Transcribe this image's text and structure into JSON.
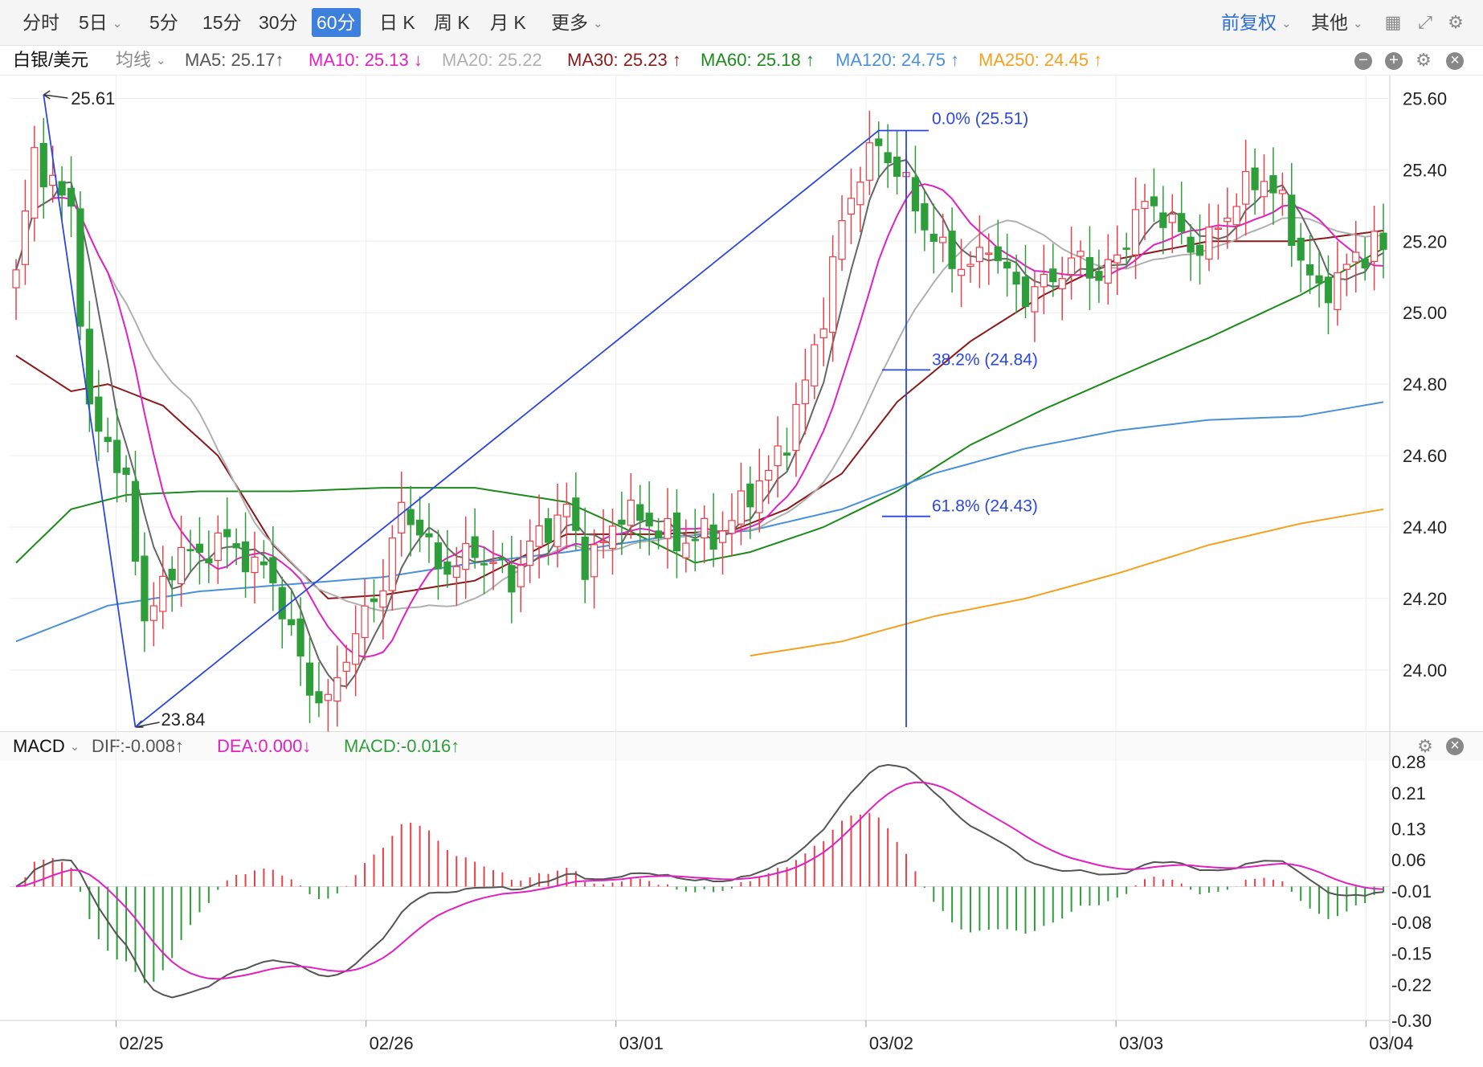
{
  "toolbar": {
    "timeframes": [
      "分时",
      "5日",
      "5分",
      "15分",
      "30分",
      "60分",
      "日 K",
      "周 K",
      "月 K",
      "更多"
    ],
    "active": "60分",
    "adjust_label": "前复权",
    "other_label": "其他"
  },
  "legend": {
    "symbol": "白银/美元",
    "ma_type": "均线",
    "ma": [
      {
        "label": "MA5: 25.17",
        "arrow": "↑",
        "color": "#555555"
      },
      {
        "label": "MA10: 25.13",
        "arrow": "↓",
        "color": "#e020c0"
      },
      {
        "label": "MA20: 25.22",
        "arrow": "",
        "color": "#b0b0b0"
      },
      {
        "label": "MA30: 25.23",
        "arrow": "↑",
        "color": "#8b1a1a"
      },
      {
        "label": "MA60: 25.18",
        "arrow": "↑",
        "color": "#1e8a1e"
      },
      {
        "label": "MA120: 24.75",
        "arrow": "↑",
        "color": "#4a90d9"
      },
      {
        "label": "MA250: 24.45",
        "arrow": "↑",
        "color": "#f5a020"
      }
    ]
  },
  "macd_legend": {
    "name": "MACD",
    "dif": "DIF:-0.008↑",
    "dea": "DEA:0.000↓",
    "macd": "MACD:-0.016↑"
  },
  "price_axis": [
    "25.60",
    "25.40",
    "25.20",
    "25.00",
    "24.80",
    "24.60",
    "24.40",
    "24.20",
    "24.00"
  ],
  "macd_axis": [
    "0.28",
    "0.21",
    "0.13",
    "0.06",
    "-0.01",
    "-0.08",
    "-0.15",
    "-0.22",
    "-0.30"
  ],
  "date_axis": [
    "02/25",
    "02/26",
    "03/01",
    "03/02",
    "03/03",
    "03/04"
  ],
  "annotations": {
    "high": "25.61",
    "low": "23.84",
    "fib0": "0.0% (25.51)",
    "fib382": "38.2% (24.84)",
    "fib618": "61.8% (24.43)"
  },
  "colors": {
    "up": "#e8414a",
    "down": "#2e9e3a",
    "fib": "#2b47e0",
    "dif": "#555555",
    "dea": "#e020c0"
  },
  "chart_data": {
    "type": "candlestick",
    "y_range": [
      23.84,
      25.61
    ],
    "macd_range": [
      -0.3,
      0.28
    ],
    "x_dates": [
      "02/25",
      "02/26",
      "03/01",
      "03/02",
      "03/03",
      "03/04"
    ],
    "close_keypoints": [
      [
        0,
        25.1
      ],
      [
        2,
        25.45
      ],
      [
        4,
        25.35
      ],
      [
        6,
        25.3
      ],
      [
        8,
        24.7
      ],
      [
        10,
        24.65
      ],
      [
        12,
        24.5
      ],
      [
        14,
        24.15
      ],
      [
        16,
        24.22
      ],
      [
        18,
        24.35
      ],
      [
        20,
        24.3
      ],
      [
        22,
        24.38
      ],
      [
        24,
        24.33
      ],
      [
        26,
        24.3
      ],
      [
        28,
        24.25
      ],
      [
        30,
        24.1
      ],
      [
        32,
        23.95
      ],
      [
        34,
        23.9
      ],
      [
        36,
        24.05
      ],
      [
        38,
        24.15
      ],
      [
        40,
        24.25
      ],
      [
        42,
        24.45
      ],
      [
        44,
        24.4
      ],
      [
        46,
        24.28
      ],
      [
        48,
        24.3
      ],
      [
        50,
        24.33
      ],
      [
        52,
        24.3
      ],
      [
        54,
        24.25
      ],
      [
        56,
        24.35
      ],
      [
        58,
        24.4
      ],
      [
        60,
        24.45
      ],
      [
        62,
        24.3
      ],
      [
        64,
        24.35
      ],
      [
        66,
        24.45
      ],
      [
        68,
        24.42
      ],
      [
        70,
        24.4
      ],
      [
        72,
        24.35
      ],
      [
        74,
        24.38
      ],
      [
        76,
        24.37
      ],
      [
        78,
        24.42
      ],
      [
        80,
        24.5
      ],
      [
        82,
        24.55
      ],
      [
        84,
        24.65
      ],
      [
        86,
        24.8
      ],
      [
        88,
        25.0
      ],
      [
        90,
        25.25
      ],
      [
        92,
        25.4
      ],
      [
        94,
        25.47
      ],
      [
        96,
        25.4
      ],
      [
        98,
        25.3
      ],
      [
        100,
        25.2
      ],
      [
        102,
        25.15
      ],
      [
        104,
        25.12
      ],
      [
        106,
        25.2
      ],
      [
        108,
        25.1
      ],
      [
        110,
        25.05
      ],
      [
        112,
        25.08
      ],
      [
        114,
        25.12
      ],
      [
        116,
        25.15
      ],
      [
        118,
        25.1
      ],
      [
        120,
        25.15
      ],
      [
        122,
        25.28
      ],
      [
        124,
        25.3
      ],
      [
        126,
        25.25
      ],
      [
        128,
        25.18
      ],
      [
        130,
        25.2
      ],
      [
        132,
        25.28
      ],
      [
        134,
        25.35
      ],
      [
        136,
        25.38
      ],
      [
        138,
        25.3
      ],
      [
        140,
        25.15
      ],
      [
        142,
        25.05
      ],
      [
        144,
        25.1
      ],
      [
        146,
        25.15
      ],
      [
        148,
        25.2
      ],
      [
        149,
        25.17
      ]
    ],
    "ma_series": [
      {
        "name": "MA30",
        "color": "#8b1a1a",
        "points": [
          [
            0,
            24.88
          ],
          [
            6,
            24.78
          ],
          [
            10,
            24.8
          ],
          [
            16,
            24.74
          ],
          [
            22,
            24.6
          ],
          [
            28,
            24.35
          ],
          [
            34,
            24.2
          ],
          [
            40,
            24.21
          ],
          [
            50,
            24.25
          ],
          [
            60,
            24.38
          ],
          [
            70,
            24.38
          ],
          [
            78,
            24.39
          ],
          [
            84,
            24.45
          ],
          [
            90,
            24.55
          ],
          [
            96,
            24.75
          ],
          [
            104,
            24.92
          ],
          [
            112,
            25.05
          ],
          [
            120,
            25.15
          ],
          [
            130,
            25.2
          ],
          [
            140,
            25.2
          ],
          [
            149,
            25.23
          ]
        ]
      },
      {
        "name": "MA60",
        "color": "#1e8a1e",
        "points": [
          [
            0,
            24.3
          ],
          [
            6,
            24.45
          ],
          [
            12,
            24.49
          ],
          [
            20,
            24.5
          ],
          [
            30,
            24.5
          ],
          [
            40,
            24.51
          ],
          [
            50,
            24.51
          ],
          [
            60,
            24.47
          ],
          [
            66,
            24.4
          ],
          [
            74,
            24.3
          ],
          [
            80,
            24.33
          ],
          [
            88,
            24.4
          ],
          [
            96,
            24.5
          ],
          [
            104,
            24.63
          ],
          [
            112,
            24.73
          ],
          [
            120,
            24.82
          ],
          [
            130,
            24.93
          ],
          [
            140,
            25.05
          ],
          [
            149,
            25.18
          ]
        ]
      },
      {
        "name": "MA120",
        "color": "#4a90d9",
        "points": [
          [
            0,
            24.08
          ],
          [
            10,
            24.18
          ],
          [
            20,
            24.22
          ],
          [
            30,
            24.24
          ],
          [
            40,
            24.26
          ],
          [
            50,
            24.3
          ],
          [
            60,
            24.33
          ],
          [
            70,
            24.37
          ],
          [
            80,
            24.39
          ],
          [
            90,
            24.45
          ],
          [
            100,
            24.55
          ],
          [
            110,
            24.62
          ],
          [
            120,
            24.67
          ],
          [
            130,
            24.7
          ],
          [
            140,
            24.71
          ],
          [
            149,
            24.75
          ]
        ]
      },
      {
        "name": "MA250",
        "color": "#f5a020",
        "points": [
          [
            80,
            24.04
          ],
          [
            90,
            24.08
          ],
          [
            100,
            24.15
          ],
          [
            110,
            24.2
          ],
          [
            120,
            24.27
          ],
          [
            130,
            24.35
          ],
          [
            140,
            24.41
          ],
          [
            149,
            24.45
          ]
        ]
      }
    ]
  }
}
